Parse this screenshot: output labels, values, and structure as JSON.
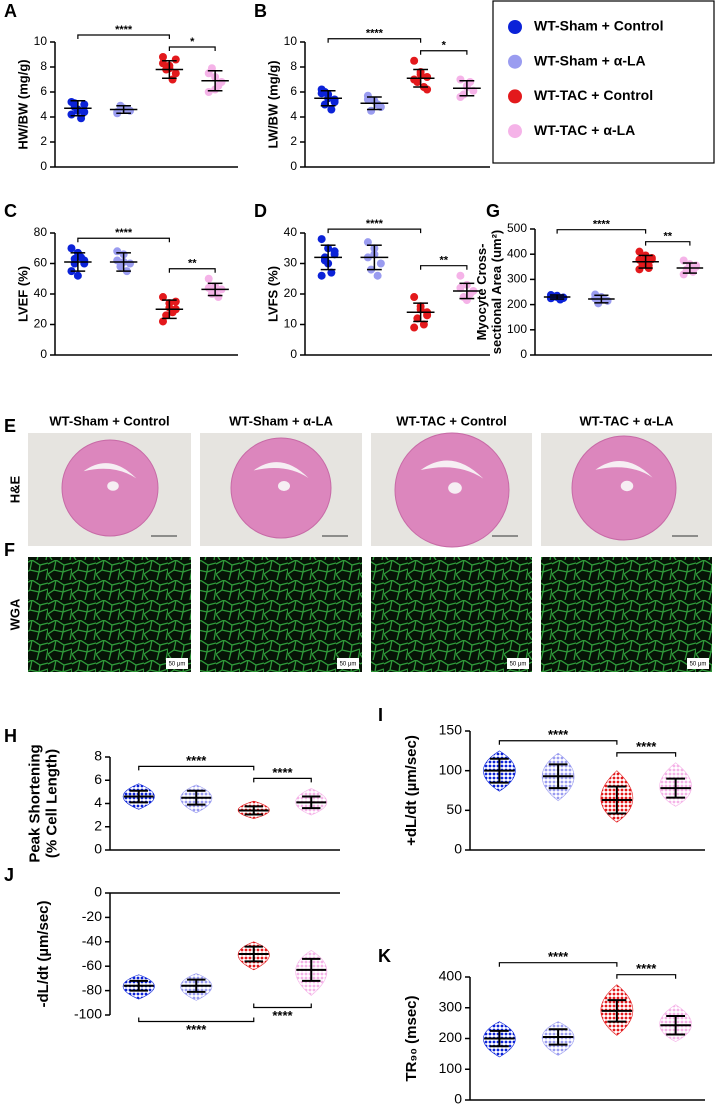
{
  "legend": {
    "series": [
      {
        "name": "WT-Sham + Control",
        "color": "#0b22d8"
      },
      {
        "name": "WT-Sham + α-LA",
        "color": "#9a9cf0"
      },
      {
        "name": "WT-TAC + Control",
        "color": "#e3191c"
      },
      {
        "name": "WT-TAC + α-LA",
        "color": "#f5b3e8"
      }
    ]
  },
  "chart_data": [
    {
      "panel": "A",
      "type": "dotplot",
      "ylabel": [
        "HW/BW (mg/g)"
      ],
      "ylim": [
        0,
        10
      ],
      "yticks": [
        0,
        2,
        4,
        6,
        8,
        10
      ],
      "series": [
        {
          "values": [
            4.2,
            4.5,
            5.0,
            4.8,
            3.9,
            5.2,
            4.6,
            4.4,
            5.1
          ],
          "mean": 4.7,
          "sd": 0.6
        },
        {
          "values": [
            4.4,
            4.7,
            4.5,
            4.9,
            4.6,
            4.3
          ],
          "mean": 4.6,
          "sd": 0.3
        },
        {
          "values": [
            8.8,
            8.1,
            7.5,
            7.8,
            7.0,
            8.3,
            7.9,
            8.6
          ],
          "mean": 7.8,
          "sd": 0.7
        },
        {
          "values": [
            7.5,
            6.2,
            6.8,
            7.9,
            6.5,
            6.0,
            7.2
          ],
          "mean": 6.9,
          "sd": 0.8
        }
      ],
      "significance": [
        {
          "groups": [
            0,
            2
          ],
          "label": "****"
        },
        {
          "groups": [
            2,
            3
          ],
          "label": "*"
        }
      ]
    },
    {
      "panel": "B",
      "type": "dotplot",
      "ylabel": [
        "LW/BW (mg/g)"
      ],
      "ylim": [
        0,
        10
      ],
      "yticks": [
        0,
        2,
        4,
        6,
        8,
        10
      ],
      "series": [
        {
          "values": [
            6.2,
            5.8,
            5.4,
            5.0,
            4.6,
            5.9,
            5.5,
            5.2,
            6.0
          ],
          "mean": 5.5,
          "sd": 0.6
        },
        {
          "values": [
            5.7,
            5.3,
            4.8,
            4.5,
            5.0,
            5.4
          ],
          "mean": 5.1,
          "sd": 0.5
        },
        {
          "values": [
            8.5,
            7.6,
            7.2,
            6.8,
            6.4,
            7.0,
            7.4,
            6.2
          ],
          "mean": 7.1,
          "sd": 0.7
        },
        {
          "values": [
            7.0,
            6.5,
            6.1,
            5.8,
            6.8,
            5.6,
            6.4
          ],
          "mean": 6.3,
          "sd": 0.6
        }
      ],
      "significance": [
        {
          "groups": [
            0,
            2
          ],
          "label": "****"
        },
        {
          "groups": [
            2,
            3
          ],
          "label": "*"
        }
      ]
    },
    {
      "panel": "C",
      "type": "dotplot",
      "ylabel": [
        "LVEF (%)"
      ],
      "ylim": [
        0,
        80
      ],
      "yticks": [
        0,
        20,
        40,
        60,
        80
      ],
      "series": [
        {
          "values": [
            70,
            67,
            62,
            60,
            64,
            55,
            52,
            60,
            63
          ],
          "mean": 61,
          "sd": 6
        },
        {
          "values": [
            68,
            66,
            60,
            58,
            55,
            62,
            61
          ],
          "mean": 61,
          "sd": 6
        },
        {
          "values": [
            38,
            34,
            30,
            26,
            28,
            22,
            31,
            35
          ],
          "mean": 30,
          "sd": 6
        },
        {
          "values": [
            50,
            45,
            43,
            40,
            38,
            44,
            42
          ],
          "mean": 43,
          "sd": 4
        }
      ],
      "significance": [
        {
          "groups": [
            0,
            2
          ],
          "label": "****"
        },
        {
          "groups": [
            2,
            3
          ],
          "label": "**"
        }
      ]
    },
    {
      "panel": "D",
      "type": "dotplot",
      "ylabel": [
        "LVFS (%)"
      ],
      "ylim": [
        0,
        40
      ],
      "yticks": [
        0,
        10,
        20,
        30,
        40
      ],
      "series": [
        {
          "values": [
            38,
            35,
            33,
            31,
            27,
            26,
            30,
            34,
            32
          ],
          "mean": 32,
          "sd": 4
        },
        {
          "values": [
            37,
            35,
            30,
            28,
            26,
            32,
            33
          ],
          "mean": 32,
          "sd": 4
        },
        {
          "values": [
            19,
            16,
            14,
            12,
            10,
            9,
            15,
            13
          ],
          "mean": 14,
          "sd": 3
        },
        {
          "values": [
            26,
            23,
            21,
            19,
            20,
            22,
            18
          ],
          "mean": 21,
          "sd": 2.5
        }
      ],
      "significance": [
        {
          "groups": [
            0,
            2
          ],
          "label": "****"
        },
        {
          "groups": [
            2,
            3
          ],
          "label": "**"
        }
      ]
    },
    {
      "panel": "G",
      "type": "dotplot",
      "ylabel": [
        "Myocyte Cross-",
        "sectional Area (um²)"
      ],
      "ylim": [
        0,
        500
      ],
      "yticks": [
        0,
        100,
        200,
        300,
        400,
        500
      ],
      "series": [
        {
          "values": [
            225,
            235,
            228,
            232,
            220,
            238,
            230,
            226
          ],
          "mean": 230,
          "sd": 8
        },
        {
          "values": [
            240,
            230,
            215,
            205,
            220,
            225
          ],
          "mean": 222,
          "sd": 15
        },
        {
          "values": [
            410,
            395,
            380,
            365,
            355,
            340,
            372,
            385,
            360,
            345,
            378
          ],
          "mean": 370,
          "sd": 25
        },
        {
          "values": [
            375,
            360,
            350,
            340,
            330,
            320,
            345,
            355
          ],
          "mean": 345,
          "sd": 20
        }
      ],
      "significance": [
        {
          "groups": [
            0,
            2
          ],
          "label": "****"
        },
        {
          "groups": [
            2,
            3
          ],
          "label": "**"
        }
      ]
    },
    {
      "panel": "H",
      "type": "cloud",
      "ylabel": [
        "Peak Shortening",
        "(% Cell Length)"
      ],
      "ylim": [
        0,
        8
      ],
      "yticks": [
        0,
        2,
        4,
        6,
        8
      ],
      "series": [
        {
          "mean": 4.6,
          "sd": 0.5,
          "min": 3.5,
          "max": 5.7
        },
        {
          "mean": 4.5,
          "sd": 0.6,
          "min": 3.2,
          "max": 5.6
        },
        {
          "mean": 3.4,
          "sd": 0.35,
          "min": 2.7,
          "max": 4.2
        },
        {
          "mean": 4.1,
          "sd": 0.5,
          "min": 3.0,
          "max": 5.3
        }
      ],
      "significance": [
        {
          "groups": [
            0,
            2
          ],
          "label": "****"
        },
        {
          "groups": [
            2,
            3
          ],
          "label": "****"
        }
      ]
    },
    {
      "panel": "I",
      "type": "cloud",
      "ylabel": [
        "+dL/dt (µm/sec)"
      ],
      "ylim": [
        0,
        150
      ],
      "yticks": [
        0,
        50,
        100,
        150
      ],
      "series": [
        {
          "mean": 100,
          "sd": 15,
          "min": 74,
          "max": 125
        },
        {
          "mean": 93,
          "sd": 15,
          "min": 62,
          "max": 122
        },
        {
          "mean": 63,
          "sd": 17,
          "min": 35,
          "max": 100
        },
        {
          "mean": 78,
          "sd": 12,
          "min": 55,
          "max": 110
        }
      ],
      "significance": [
        {
          "groups": [
            0,
            2
          ],
          "label": "****"
        },
        {
          "groups": [
            2,
            3
          ],
          "label": "****"
        }
      ]
    },
    {
      "panel": "J",
      "type": "cloud",
      "ylabel": [
        "-dL/dt (µm/sec)"
      ],
      "ylim": [
        -100,
        0
      ],
      "yticks": [
        -100,
        -80,
        -60,
        -40,
        -20,
        0
      ],
      "series": [
        {
          "mean": -76,
          "sd": 4,
          "min": -87,
          "max": -67
        },
        {
          "mean": -76,
          "sd": 5,
          "min": -88,
          "max": -66
        },
        {
          "mean": -50,
          "sd": 6,
          "min": -63,
          "max": -40
        },
        {
          "mean": -63,
          "sd": 9,
          "min": -84,
          "max": -47
        }
      ],
      "significance": [
        {
          "groups": [
            0,
            2
          ],
          "label": "****",
          "side": "below"
        },
        {
          "groups": [
            2,
            3
          ],
          "label": "****",
          "side": "below"
        }
      ]
    },
    {
      "panel": "K",
      "type": "cloud",
      "ylabel": [
        "TR₉₀ (msec)"
      ],
      "ylim": [
        0,
        400
      ],
      "yticks": [
        0,
        100,
        200,
        300,
        400
      ],
      "series": [
        {
          "mean": 200,
          "sd": 25,
          "min": 140,
          "max": 255
        },
        {
          "mean": 205,
          "sd": 25,
          "min": 145,
          "max": 255
        },
        {
          "mean": 290,
          "sd": 35,
          "min": 210,
          "max": 375
        },
        {
          "mean": 243,
          "sd": 30,
          "min": 190,
          "max": 310
        }
      ],
      "significance": [
        {
          "groups": [
            0,
            2
          ],
          "label": "****"
        },
        {
          "groups": [
            2,
            3
          ],
          "label": "****"
        }
      ]
    }
  ],
  "histology": {
    "columns": [
      "WT-Sham + Control",
      "WT-Sham + α-LA",
      "WT-TAC + Control",
      "WT-TAC + α-LA"
    ],
    "rows": [
      {
        "panel": "E",
        "label": "H&E"
      },
      {
        "panel": "F",
        "label": "WGA"
      }
    ],
    "scale_label": "50 μm"
  }
}
